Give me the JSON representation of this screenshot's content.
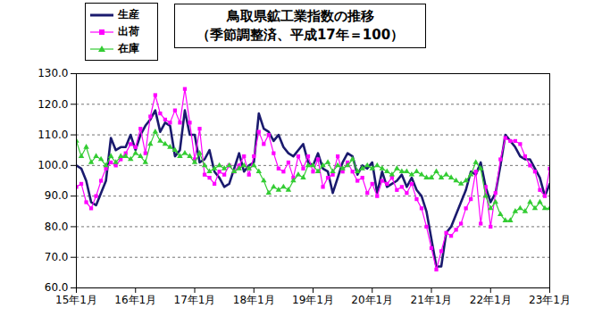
{
  "chart_data": {
    "type": "line",
    "title": "鳥取県鉱工業指数の推移",
    "subtitle": "（季節調整済、平成17年＝100）",
    "categories": [
      "15年1月",
      null,
      null,
      null,
      null,
      null,
      null,
      null,
      null,
      null,
      null,
      null,
      "16年1月",
      null,
      null,
      null,
      null,
      null,
      null,
      null,
      null,
      null,
      null,
      null,
      "17年1月",
      null,
      null,
      null,
      null,
      null,
      null,
      null,
      null,
      null,
      null,
      null,
      "18年1月",
      null,
      null,
      null,
      null,
      null,
      null,
      null,
      null,
      null,
      null,
      null,
      "19年1月",
      null,
      null,
      null,
      null,
      null,
      null,
      null,
      null,
      null,
      null,
      null,
      "20年1月",
      null,
      null,
      null,
      null,
      null,
      null,
      null,
      null,
      null,
      null,
      null,
      "21年1月",
      null,
      null,
      null,
      null,
      null,
      null,
      null,
      null,
      null,
      null,
      null,
      "22年1月",
      null,
      null,
      null,
      null,
      null,
      null,
      null,
      null,
      null,
      null,
      null,
      "23年1月"
    ],
    "series": [
      {
        "name": "生産",
        "color": "#1a1a6e",
        "marker": "none",
        "values": [
          100,
          99,
          95,
          88,
          87,
          91,
          95,
          109,
          105,
          106,
          106,
          110,
          105,
          110,
          113,
          115,
          118,
          111,
          114,
          113,
          103,
          105,
          118,
          110,
          110,
          101,
          102,
          105,
          98,
          96,
          93,
          94,
          99,
          104,
          98,
          100,
          101,
          117,
          112,
          111,
          108,
          110,
          106,
          104,
          103,
          105,
          107,
          101,
          100,
          104,
          99,
          98,
          91,
          96,
          101,
          104,
          103,
          97,
          100,
          99,
          101,
          91,
          98,
          93,
          94,
          95,
          97,
          93,
          96,
          92,
          90,
          85,
          76,
          67,
          67,
          78,
          80,
          84,
          88,
          92,
          98,
          97,
          101,
          93,
          88,
          91,
          100,
          110,
          108,
          106,
          103,
          102,
          102,
          99,
          96,
          90,
          94
        ]
      },
      {
        "name": "出荷",
        "color": "#ff00ff",
        "marker": "square",
        "values": [
          93,
          94,
          88,
          86,
          90,
          95,
          99,
          101,
          100,
          102,
          104,
          107,
          106,
          112,
          104,
          116,
          123,
          117,
          115,
          114,
          118,
          114,
          125,
          114,
          102,
          112,
          97,
          96,
          94,
          98,
          97,
          100,
          98,
          100,
          103,
          97,
          103,
          111,
          107,
          110,
          104,
          99,
          98,
          101,
          96,
          103,
          99,
          103,
          98,
          102,
          93,
          96,
          97,
          103,
          98,
          101,
          98,
          95,
          96,
          91,
          94,
          90,
          95,
          94,
          96,
          92,
          93,
          91,
          94,
          89,
          86,
          80,
          73,
          66,
          72,
          78,
          77,
          79,
          81,
          86,
          89,
          98,
          81,
          93,
          80,
          91,
          102,
          109,
          108,
          108,
          107,
          103,
          100,
          98,
          92,
          90,
          99
        ]
      },
      {
        "name": "在庫",
        "color": "#33cc33",
        "marker": "triangle",
        "values": [
          108,
          103,
          106,
          101,
          103,
          102,
          100,
          103,
          101,
          103,
          103,
          102,
          104,
          103,
          101,
          107,
          111,
          108,
          107,
          106,
          105,
          103,
          104,
          103,
          101,
          104,
          100,
          98,
          99,
          100,
          99,
          100,
          98,
          99,
          100,
          99,
          100,
          98,
          95,
          91,
          93,
          92,
          93,
          92,
          95,
          97,
          96,
          100,
          100,
          98,
          100,
          101,
          98,
          100,
          99,
          100,
          102,
          98,
          99,
          100,
          99,
          100,
          99,
          98,
          97,
          99,
          98,
          98,
          97,
          98,
          97,
          96,
          96,
          98,
          96,
          97,
          96,
          95,
          94,
          95,
          97,
          101,
          99,
          90,
          86,
          88,
          84,
          82,
          82,
          85,
          86,
          85,
          88,
          86,
          88,
          86,
          86
        ]
      }
    ],
    "ylim": [
      60,
      130
    ],
    "yticks": [
      {
        "value": 60,
        "label": "60.0"
      },
      {
        "value": 70,
        "label": "70.0"
      },
      {
        "value": 80,
        "label": "80.0"
      },
      {
        "value": 90,
        "label": "90.0"
      },
      {
        "value": 100,
        "label": "100.0"
      },
      {
        "value": 110,
        "label": "110.0"
      },
      {
        "value": 120,
        "label": "120.0"
      },
      {
        "value": 130,
        "label": "130.0"
      }
    ],
    "grid": true,
    "legend": "upper left"
  }
}
